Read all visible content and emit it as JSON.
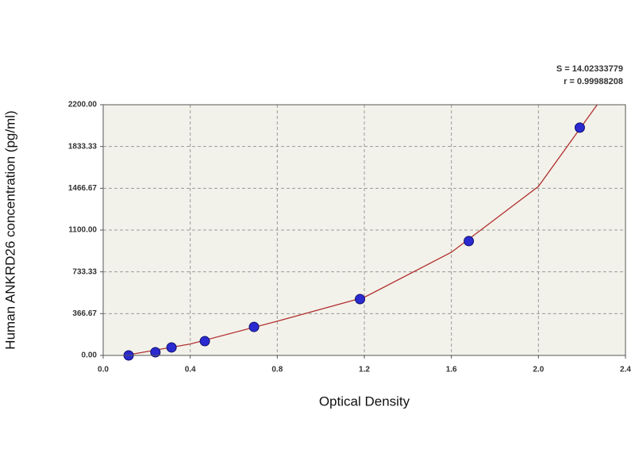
{
  "chart_data": {
    "type": "scatter",
    "x_label": "Optical Density",
    "y_label": "Human ANKRD26 concentration (pg/ml)",
    "annotations": [
      "S = 14.02333779",
      "r = 0.99988208"
    ],
    "xlim": [
      0,
      2.4
    ],
    "ylim": [
      0,
      2200
    ],
    "xticks": [
      {
        "value": 0,
        "label": "0.0"
      },
      0.4,
      0.8,
      1.2,
      1.6,
      {
        "value": 2,
        "label": "2.0"
      },
      2.4
    ],
    "yticks": [
      {
        "value": 0,
        "label": "0.00"
      },
      {
        "value": 366.67,
        "label": "366.67"
      },
      {
        "value": 733.33,
        "label": "733.33"
      },
      {
        "value": 1100,
        "label": "1100.00"
      },
      {
        "value": 1466.67,
        "label": "1466.67"
      },
      {
        "value": 1833.33,
        "label": "1833.33"
      },
      {
        "value": 2200,
        "label": "2200.00"
      }
    ],
    "grid": true,
    "series": [
      {
        "type": "scatter",
        "color": "#2a2ad0",
        "x": [
          0.117,
          0.24,
          0.314,
          0.467,
          0.693,
          1.18,
          1.68,
          2.19
        ],
        "values": [
          0,
          28,
          70,
          125,
          250,
          494,
          1003,
          1999
        ]
      },
      {
        "type": "line",
        "color": "#b03030",
        "x": [
          0.1,
          0.4,
          0.8,
          1.2,
          1.6,
          2.0,
          2.27
        ],
        "values": [
          0,
          100,
          300,
          510,
          905,
          1483,
          2200
        ]
      }
    ]
  }
}
